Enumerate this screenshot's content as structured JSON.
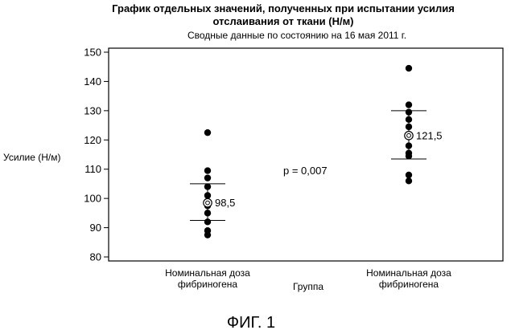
{
  "chart_data": {
    "type": "scatter",
    "title": [
      "График отдельных значений, полученных при испытании усилия",
      "отслаивания от ткани (Н/м)"
    ],
    "subtitle": "Сводные данные по состоянию на 16 мая 2011 г.",
    "xlabel": "Группа",
    "ylabel": "Усилие (Н/м)",
    "ylim": [
      80,
      150
    ],
    "yticks": [
      80,
      90,
      100,
      110,
      120,
      130,
      140,
      150
    ],
    "grid": false,
    "categories": [
      [
        "Номинальная доза",
        "фибриногена"
      ],
      [
        "Номинальная доза",
        "фибриногена"
      ]
    ],
    "series": [
      {
        "values": [
          122.5,
          109.5,
          107.0,
          104.0,
          101.0,
          98.5,
          97.5,
          95.0,
          92.0,
          89.0,
          87.5
        ],
        "mean": 98.5,
        "mean_label": "98,5",
        "upper": 105.0,
        "lower": 92.5
      },
      {
        "values": [
          144.5,
          132.0,
          129.5,
          127.0,
          124.5,
          121.5,
          118.0,
          115.5,
          114.5,
          108.0,
          106.0
        ],
        "mean": 121.5,
        "mean_label": "121,5",
        "upper": 130.0,
        "lower": 113.5
      }
    ],
    "annotation": "p = 0,007",
    "figure_label": "ФИГ. 1",
    "color": "#000000"
  }
}
